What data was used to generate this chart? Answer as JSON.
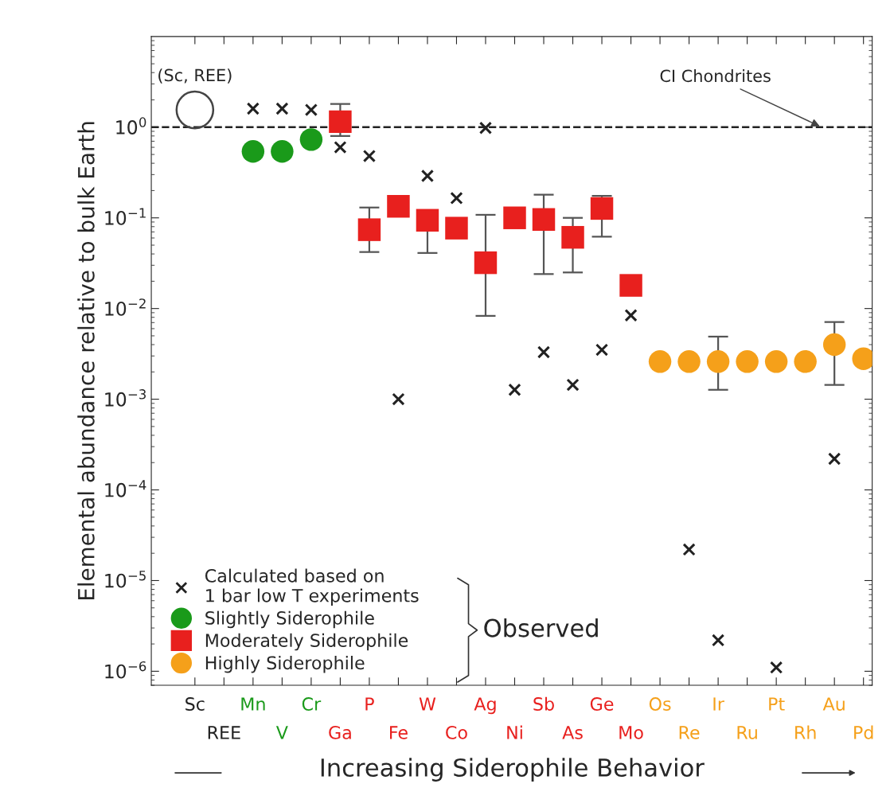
{
  "chart_data": {
    "type": "scatter",
    "ylabel": "Elemental abundance relative to bulk Earth",
    "xlabel": "Increasing Siderophile Behavior",
    "categories": [
      "Sc",
      "REE",
      "Mn",
      "V",
      "Cr",
      "Ga",
      "P",
      "Fe",
      "W",
      "Co",
      "Ag",
      "Ni",
      "Sb",
      "As",
      "Ge",
      "Mo",
      "Os",
      "Re",
      "Ir",
      "Ru",
      "Pt",
      "Rh",
      "Au",
      "Pd"
    ],
    "log": "y",
    "ylim": [
      7e-07,
      10
    ],
    "yticks": [
      {
        "value": 1e-06,
        "label": "10$^{−6}$"
      },
      {
        "value": 1e-05,
        "label": "10$^{−5}$"
      },
      {
        "value": 0.0001,
        "label": "10$^{−4}$"
      },
      {
        "value": 0.001,
        "label": "10$^{−3}$"
      },
      {
        "value": 0.01,
        "label": "10$^{−2}$"
      },
      {
        "value": 0.1,
        "label": "10$^{−1}$"
      },
      {
        "value": 1,
        "label": "10$^{0}$"
      }
    ],
    "ref_lines": [
      {
        "axis": "y",
        "value": 1,
        "label": "CI Chondrites",
        "line_style": "dashed",
        "color": "#222222"
      }
    ],
    "series": [
      {
        "name": "Calculated based on\n1 bar low T experiments",
        "color": "#222222",
        "marker": "cross",
        "values": [
          null,
          null,
          1.6,
          1.6,
          1.55,
          0.6,
          0.48,
          0.001,
          0.29,
          0.165,
          0.98,
          0.00127,
          0.0033,
          0.00144,
          0.0035,
          0.0084,
          null,
          2.2e-05,
          2.2e-06,
          null,
          1.1e-06,
          null,
          0.00022,
          null
        ]
      },
      {
        "name": "Slightly Siderophile",
        "color": "#1a9a1a",
        "marker": "circle",
        "values": [
          null,
          null,
          0.54,
          0.54,
          0.73,
          null,
          null,
          null,
          null,
          null,
          null,
          null,
          null,
          null,
          null,
          null,
          null,
          null,
          null,
          null,
          null,
          null,
          null,
          null
        ]
      },
      {
        "name": "Moderately Siderophile",
        "color": "#e8201e",
        "marker": "square",
        "values": [
          null,
          null,
          null,
          null,
          null,
          1.15,
          0.074,
          0.134,
          0.094,
          0.077,
          0.032,
          0.1,
          0.096,
          0.061,
          0.127,
          0.018,
          null,
          null,
          null,
          null,
          null,
          null,
          null,
          null
        ],
        "errors": [
          null,
          null,
          null,
          null,
          null,
          [
            0.8,
            1.8
          ],
          [
            0.042,
            0.13
          ],
          null,
          [
            0.041,
            0.12
          ],
          null,
          [
            0.0083,
            0.108
          ],
          null,
          [
            0.024,
            0.18
          ],
          [
            0.025,
            0.1
          ],
          [
            0.062,
            0.175
          ],
          null,
          null,
          null,
          null,
          null,
          null,
          null,
          null,
          null
        ]
      },
      {
        "name": "Highly Siderophile",
        "color": "#f5a01a",
        "marker": "circle",
        "values": [
          null,
          null,
          null,
          null,
          null,
          null,
          null,
          null,
          null,
          null,
          null,
          null,
          null,
          null,
          null,
          null,
          0.0026,
          0.0026,
          0.0026,
          0.0026,
          0.0026,
          0.0026,
          0.004,
          0.0028
        ],
        "errors": [
          null,
          null,
          null,
          null,
          null,
          null,
          null,
          null,
          null,
          null,
          null,
          null,
          null,
          null,
          null,
          null,
          null,
          null,
          [
            0.00127,
            0.0049
          ],
          null,
          null,
          null,
          [
            0.00144,
            0.0071
          ],
          null
        ]
      },
      {
        "color": "#444444",
        "marker": "circle",
        "values": [
          1.55,
          null,
          null,
          null,
          null,
          null,
          null,
          null,
          null,
          null,
          null,
          null,
          null,
          null,
          null,
          null,
          null,
          null,
          null,
          null,
          null,
          null,
          null,
          null
        ]
      }
    ],
    "annotations": [
      {
        "text": "(Sc, REE)",
        "x": "Sc",
        "y": 1.55
      },
      "Observed"
    ],
    "legend": "bottom left",
    "grid": false
  }
}
